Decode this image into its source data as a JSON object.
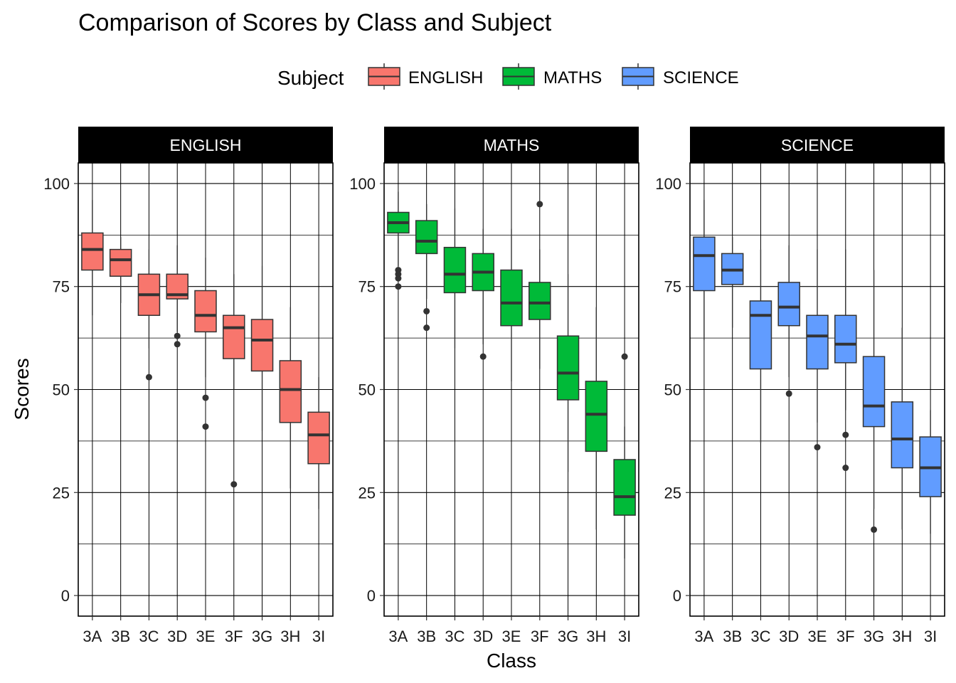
{
  "chart_data": {
    "type": "boxplot",
    "title": "Comparison of Scores by Class and Subject",
    "xlabel": "Class",
    "ylabel": "Scores",
    "ylim": [
      -5,
      105
    ],
    "yticks": [
      0,
      25,
      50,
      75,
      100
    ],
    "legend": {
      "title": "Subject",
      "position": "top",
      "entries": [
        "ENGLISH",
        "MATHS",
        "SCIENCE"
      ]
    },
    "colors": {
      "ENGLISH": "#F8766D",
      "MATHS": "#00BA38",
      "SCIENCE": "#619CFF"
    },
    "grid": true,
    "categories": [
      "3A",
      "3B",
      "3C",
      "3D",
      "3E",
      "3F",
      "3G",
      "3H",
      "3I"
    ],
    "facets": [
      {
        "name": "ENGLISH",
        "boxes": [
          {
            "class": "3A",
            "whisker_low": 68,
            "q1": 79,
            "median": 84,
            "q3": 88,
            "whisker_high": 96,
            "outliers": []
          },
          {
            "class": "3B",
            "whisker_low": 71,
            "q1": 77.5,
            "median": 81.5,
            "q3": 84,
            "whisker_high": 87,
            "outliers": []
          },
          {
            "class": "3C",
            "whisker_low": 60,
            "q1": 68,
            "median": 73,
            "q3": 78,
            "whisker_high": 84,
            "outliers": [
              53
            ]
          },
          {
            "class": "3D",
            "whisker_low": 64,
            "q1": 72,
            "median": 73,
            "q3": 78,
            "whisker_high": 85,
            "outliers": [
              63,
              61
            ]
          },
          {
            "class": "3E",
            "whisker_low": 53,
            "q1": 64,
            "median": 68,
            "q3": 74,
            "whisker_high": 82,
            "outliers": [
              48,
              41
            ]
          },
          {
            "class": "3F",
            "whisker_low": 50,
            "q1": 57.5,
            "median": 65,
            "q3": 68,
            "whisker_high": 78,
            "outliers": [
              27
            ]
          },
          {
            "class": "3G",
            "whisker_low": 40,
            "q1": 54.5,
            "median": 62,
            "q3": 67,
            "whisker_high": 80,
            "outliers": []
          },
          {
            "class": "3H",
            "whisker_low": 26,
            "q1": 42,
            "median": 50,
            "q3": 57,
            "whisker_high": 70,
            "outliers": []
          },
          {
            "class": "3I",
            "whisker_low": 21,
            "q1": 32,
            "median": 39,
            "q3": 44.5,
            "whisker_high": 53,
            "outliers": []
          }
        ]
      },
      {
        "name": "MATHS",
        "boxes": [
          {
            "class": "3A",
            "whisker_low": 80,
            "q1": 88,
            "median": 90.5,
            "q3": 93,
            "whisker_high": 98,
            "outliers": [
              79,
              78,
              77,
              75
            ]
          },
          {
            "class": "3B",
            "whisker_low": 72,
            "q1": 83,
            "median": 86,
            "q3": 91,
            "whisker_high": 95,
            "outliers": [
              69,
              65
            ]
          },
          {
            "class": "3C",
            "whisker_low": 60,
            "q1": 73.5,
            "median": 78,
            "q3": 84.5,
            "whisker_high": 94,
            "outliers": []
          },
          {
            "class": "3D",
            "whisker_low": 61,
            "q1": 74,
            "median": 78.5,
            "q3": 83,
            "whisker_high": 89,
            "outliers": [
              58
            ]
          },
          {
            "class": "3E",
            "whisker_low": 52,
            "q1": 65.5,
            "median": 71,
            "q3": 79,
            "whisker_high": 89,
            "outliers": []
          },
          {
            "class": "3F",
            "whisker_low": 55,
            "q1": 67,
            "median": 71,
            "q3": 76,
            "whisker_high": 84,
            "outliers": [
              95
            ]
          },
          {
            "class": "3G",
            "whisker_low": 30,
            "q1": 47.5,
            "median": 54,
            "q3": 63,
            "whisker_high": 78,
            "outliers": []
          },
          {
            "class": "3H",
            "whisker_low": 16,
            "q1": 35,
            "median": 44,
            "q3": 52,
            "whisker_high": 70,
            "outliers": []
          },
          {
            "class": "3I",
            "whisker_low": 9,
            "q1": 19.5,
            "median": 24,
            "q3": 33,
            "whisker_high": 41,
            "outliers": [
              58
            ]
          }
        ]
      },
      {
        "name": "SCIENCE",
        "boxes": [
          {
            "class": "3A",
            "whisker_low": 62,
            "q1": 74,
            "median": 82.5,
            "q3": 87,
            "whisker_high": 96,
            "outliers": []
          },
          {
            "class": "3B",
            "whisker_low": 65,
            "q1": 75.5,
            "median": 79,
            "q3": 83,
            "whisker_high": 87,
            "outliers": []
          },
          {
            "class": "3C",
            "whisker_low": 37,
            "q1": 55,
            "median": 68,
            "q3": 71.5,
            "whisker_high": 84,
            "outliers": []
          },
          {
            "class": "3D",
            "whisker_low": 53,
            "q1": 65.5,
            "median": 70,
            "q3": 76,
            "whisker_high": 85,
            "outliers": [
              49
            ]
          },
          {
            "class": "3E",
            "whisker_low": 42,
            "q1": 55,
            "median": 63,
            "q3": 68,
            "whisker_high": 84,
            "outliers": [
              36
            ]
          },
          {
            "class": "3F",
            "whisker_low": 45,
            "q1": 56.5,
            "median": 61,
            "q3": 68,
            "whisker_high": 84,
            "outliers": [
              39,
              31
            ]
          },
          {
            "class": "3G",
            "whisker_low": 21,
            "q1": 41,
            "median": 46,
            "q3": 58,
            "whisker_high": 79,
            "outliers": [
              16
            ]
          },
          {
            "class": "3H",
            "whisker_low": 16,
            "q1": 31,
            "median": 38,
            "q3": 47,
            "whisker_high": 65,
            "outliers": []
          },
          {
            "class": "3I",
            "whisker_low": 15,
            "q1": 24,
            "median": 31,
            "q3": 38.5,
            "whisker_high": 45,
            "outliers": []
          }
        ]
      }
    ]
  }
}
